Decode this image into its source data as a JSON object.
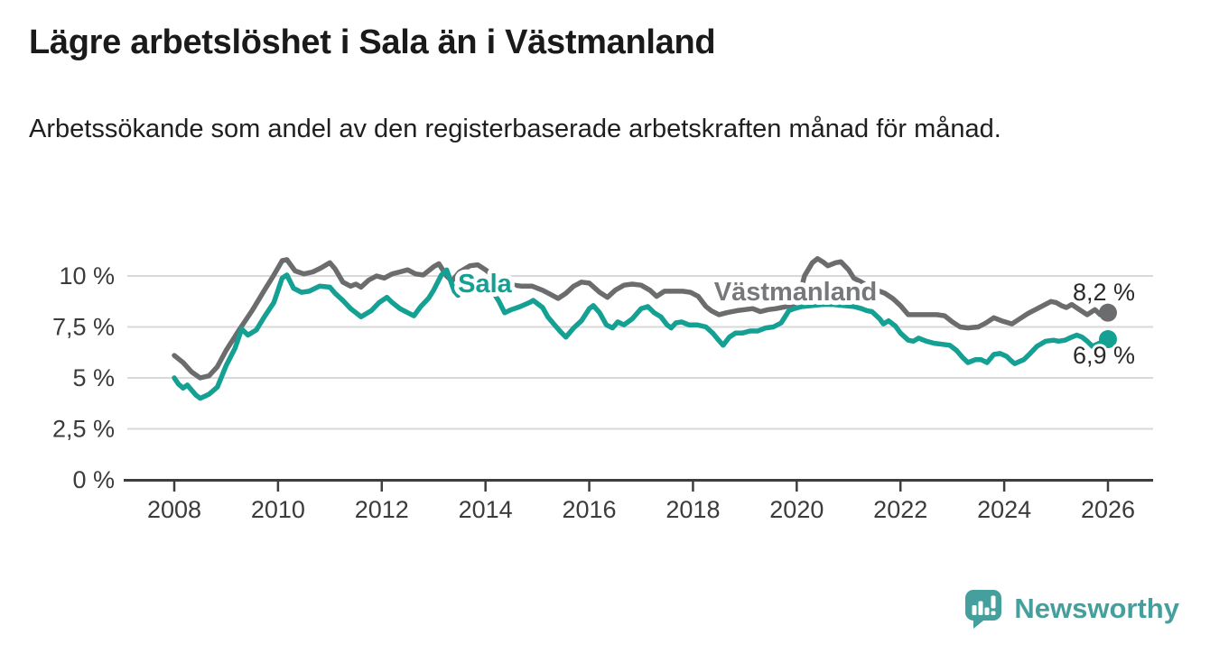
{
  "header": {
    "title": "Lägre arbetslöshet i Sala än i Västmanland",
    "subtitle": "Arbetssökande som andel av den registerbaserade arbetskraften månad för månad."
  },
  "footer": {
    "brand": "Newsworthy",
    "brand_color": "#45a09d"
  },
  "chart_data": {
    "type": "line",
    "title": "Lägre arbetslöshet i Sala än i Västmanland",
    "subtitle": "Arbetssökande som andel av den registerbaserade arbetskraften månad för månad.",
    "unit": "%",
    "grid": true,
    "legend_position": "inline-labels",
    "style": {
      "grid_color": "#d9d9d9",
      "axis_color": "#3d3d3d",
      "tick_label_color": "#3b3b3b",
      "value_label_color": "#2a2a2a",
      "background": "#ffffff"
    },
    "x_axis": {
      "min": 2007.05,
      "max": 2026.85,
      "ticks": [
        {
          "v": 2008,
          "label": "2008"
        },
        {
          "v": 2010,
          "label": "2010"
        },
        {
          "v": 2012,
          "label": "2012"
        },
        {
          "v": 2014,
          "label": "2014"
        },
        {
          "v": 2016,
          "label": "2016"
        },
        {
          "v": 2018,
          "label": "2018"
        },
        {
          "v": 2020,
          "label": "2020"
        },
        {
          "v": 2022,
          "label": "2022"
        },
        {
          "v": 2024,
          "label": "2024"
        },
        {
          "v": 2026,
          "label": "2026"
        }
      ]
    },
    "y_axis": {
      "min": 0,
      "max": 11.6,
      "ticks": [
        {
          "v": 10,
          "label": "10 %"
        },
        {
          "v": 7.5,
          "label": "7,5 %"
        },
        {
          "v": 5,
          "label": "5 %"
        },
        {
          "v": 2.5,
          "label": "2,5 %"
        },
        {
          "v": 0,
          "label": "0 %"
        }
      ]
    },
    "series": [
      {
        "name": "Västmanland",
        "inline_label": "Västmanland",
        "color": "#6b6c6e",
        "label_color": "#77787c",
        "end_label": "8,2 %",
        "end_value": 8.2,
        "points": [
          [
            2008.0,
            6.1
          ],
          [
            2008.17,
            5.75
          ],
          [
            2008.33,
            5.3
          ],
          [
            2008.5,
            5.0
          ],
          [
            2008.67,
            5.1
          ],
          [
            2008.83,
            5.55
          ],
          [
            2009.0,
            6.35
          ],
          [
            2009.25,
            7.35
          ],
          [
            2009.5,
            8.3
          ],
          [
            2009.75,
            9.35
          ],
          [
            2009.92,
            10.05
          ],
          [
            2010.08,
            10.75
          ],
          [
            2010.17,
            10.8
          ],
          [
            2010.33,
            10.25
          ],
          [
            2010.5,
            10.1
          ],
          [
            2010.67,
            10.2
          ],
          [
            2010.83,
            10.4
          ],
          [
            2011.0,
            10.65
          ],
          [
            2011.1,
            10.35
          ],
          [
            2011.25,
            9.7
          ],
          [
            2011.4,
            9.5
          ],
          [
            2011.5,
            9.6
          ],
          [
            2011.6,
            9.45
          ],
          [
            2011.75,
            9.8
          ],
          [
            2011.9,
            10.0
          ],
          [
            2012.05,
            9.9
          ],
          [
            2012.2,
            10.1
          ],
          [
            2012.35,
            10.2
          ],
          [
            2012.5,
            10.3
          ],
          [
            2012.65,
            10.1
          ],
          [
            2012.8,
            10.05
          ],
          [
            2013.0,
            10.45
          ],
          [
            2013.1,
            10.6
          ],
          [
            2013.25,
            10.0
          ],
          [
            2013.35,
            9.75
          ],
          [
            2013.5,
            10.2
          ],
          [
            2013.7,
            10.5
          ],
          [
            2013.85,
            10.55
          ],
          [
            2014.0,
            10.3
          ],
          [
            2014.2,
            9.9
          ],
          [
            2014.4,
            9.7
          ],
          [
            2014.55,
            9.55
          ],
          [
            2014.7,
            9.5
          ],
          [
            2014.9,
            9.5
          ],
          [
            2015.1,
            9.3
          ],
          [
            2015.25,
            9.1
          ],
          [
            2015.4,
            8.9
          ],
          [
            2015.55,
            9.15
          ],
          [
            2015.7,
            9.5
          ],
          [
            2015.85,
            9.7
          ],
          [
            2016.0,
            9.65
          ],
          [
            2016.2,
            9.2
          ],
          [
            2016.35,
            8.95
          ],
          [
            2016.5,
            9.3
          ],
          [
            2016.67,
            9.55
          ],
          [
            2016.83,
            9.6
          ],
          [
            2017.0,
            9.55
          ],
          [
            2017.17,
            9.3
          ],
          [
            2017.3,
            9.0
          ],
          [
            2017.45,
            9.25
          ],
          [
            2017.6,
            9.25
          ],
          [
            2017.8,
            9.25
          ],
          [
            2017.95,
            9.2
          ],
          [
            2018.1,
            9.0
          ],
          [
            2018.25,
            8.5
          ],
          [
            2018.35,
            8.3
          ],
          [
            2018.5,
            8.1
          ],
          [
            2018.65,
            8.2
          ],
          [
            2018.85,
            8.3
          ],
          [
            2019.0,
            8.35
          ],
          [
            2019.15,
            8.4
          ],
          [
            2019.3,
            8.25
          ],
          [
            2019.45,
            8.35
          ],
          [
            2019.6,
            8.4
          ],
          [
            2019.8,
            8.5
          ],
          [
            2019.95,
            8.6
          ],
          [
            2020.05,
            9.0
          ],
          [
            2020.15,
            10.0
          ],
          [
            2020.3,
            10.65
          ],
          [
            2020.4,
            10.85
          ],
          [
            2020.5,
            10.7
          ],
          [
            2020.6,
            10.5
          ],
          [
            2020.75,
            10.65
          ],
          [
            2020.85,
            10.7
          ],
          [
            2021.0,
            10.3
          ],
          [
            2021.1,
            9.9
          ],
          [
            2021.25,
            9.7
          ],
          [
            2021.4,
            9.45
          ],
          [
            2021.55,
            9.3
          ],
          [
            2021.7,
            9.15
          ],
          [
            2021.85,
            8.9
          ],
          [
            2022.0,
            8.55
          ],
          [
            2022.15,
            8.1
          ],
          [
            2022.3,
            8.1
          ],
          [
            2022.5,
            8.1
          ],
          [
            2022.7,
            8.1
          ],
          [
            2022.85,
            8.05
          ],
          [
            2023.0,
            7.75
          ],
          [
            2023.15,
            7.5
          ],
          [
            2023.3,
            7.45
          ],
          [
            2023.5,
            7.5
          ],
          [
            2023.65,
            7.7
          ],
          [
            2023.8,
            7.95
          ],
          [
            2023.95,
            7.8
          ],
          [
            2024.15,
            7.65
          ],
          [
            2024.3,
            7.9
          ],
          [
            2024.45,
            8.15
          ],
          [
            2024.6,
            8.35
          ],
          [
            2024.75,
            8.55
          ],
          [
            2024.9,
            8.75
          ],
          [
            2025.0,
            8.7
          ],
          [
            2025.1,
            8.55
          ],
          [
            2025.2,
            8.45
          ],
          [
            2025.3,
            8.6
          ],
          [
            2025.45,
            8.35
          ],
          [
            2025.6,
            8.1
          ],
          [
            2025.75,
            8.35
          ],
          [
            2025.85,
            8.1
          ],
          [
            2026.0,
            8.2
          ]
        ]
      },
      {
        "name": "Sala",
        "inline_label": "Sala",
        "color": "#14a092",
        "label_color": "#14a092",
        "end_label": "6,9 %",
        "end_value": 6.9,
        "points": [
          [
            2008.0,
            5.0
          ],
          [
            2008.08,
            4.7
          ],
          [
            2008.17,
            4.5
          ],
          [
            2008.25,
            4.65
          ],
          [
            2008.42,
            4.15
          ],
          [
            2008.5,
            4.0
          ],
          [
            2008.67,
            4.2
          ],
          [
            2008.83,
            4.55
          ],
          [
            2009.0,
            5.6
          ],
          [
            2009.17,
            6.45
          ],
          [
            2009.3,
            7.4
          ],
          [
            2009.42,
            7.1
          ],
          [
            2009.58,
            7.35
          ],
          [
            2009.75,
            8.05
          ],
          [
            2009.92,
            8.7
          ],
          [
            2010.08,
            9.9
          ],
          [
            2010.17,
            10.05
          ],
          [
            2010.3,
            9.4
          ],
          [
            2010.45,
            9.2
          ],
          [
            2010.6,
            9.25
          ],
          [
            2010.8,
            9.5
          ],
          [
            2011.0,
            9.45
          ],
          [
            2011.1,
            9.15
          ],
          [
            2011.25,
            8.8
          ],
          [
            2011.4,
            8.4
          ],
          [
            2011.5,
            8.2
          ],
          [
            2011.6,
            8.0
          ],
          [
            2011.8,
            8.3
          ],
          [
            2011.95,
            8.7
          ],
          [
            2012.1,
            8.95
          ],
          [
            2012.2,
            8.7
          ],
          [
            2012.35,
            8.4
          ],
          [
            2012.5,
            8.2
          ],
          [
            2012.62,
            8.05
          ],
          [
            2012.75,
            8.5
          ],
          [
            2012.9,
            8.9
          ],
          [
            2013.0,
            9.3
          ],
          [
            2013.15,
            10.05
          ],
          [
            2013.25,
            10.3
          ],
          [
            2013.4,
            9.25
          ],
          [
            2013.47,
            9.05
          ],
          [
            2013.6,
            9.9
          ],
          [
            2013.7,
            9.75
          ],
          [
            2013.85,
            9.9
          ],
          [
            2014.0,
            9.7
          ],
          [
            2014.1,
            9.4
          ],
          [
            2014.25,
            8.8
          ],
          [
            2014.37,
            8.2
          ],
          [
            2014.5,
            8.35
          ],
          [
            2014.67,
            8.5
          ],
          [
            2014.85,
            8.7
          ],
          [
            2014.92,
            8.8
          ],
          [
            2015.1,
            8.45
          ],
          [
            2015.2,
            8.0
          ],
          [
            2015.33,
            7.6
          ],
          [
            2015.45,
            7.25
          ],
          [
            2015.55,
            7.0
          ],
          [
            2015.7,
            7.45
          ],
          [
            2015.85,
            7.8
          ],
          [
            2016.0,
            8.4
          ],
          [
            2016.08,
            8.55
          ],
          [
            2016.2,
            8.2
          ],
          [
            2016.33,
            7.6
          ],
          [
            2016.45,
            7.45
          ],
          [
            2016.55,
            7.75
          ],
          [
            2016.67,
            7.6
          ],
          [
            2016.83,
            7.9
          ],
          [
            2017.0,
            8.4
          ],
          [
            2017.13,
            8.5
          ],
          [
            2017.25,
            8.2
          ],
          [
            2017.38,
            8.0
          ],
          [
            2017.5,
            7.6
          ],
          [
            2017.58,
            7.45
          ],
          [
            2017.67,
            7.7
          ],
          [
            2017.78,
            7.75
          ],
          [
            2017.92,
            7.6
          ],
          [
            2018.08,
            7.6
          ],
          [
            2018.25,
            7.5
          ],
          [
            2018.38,
            7.2
          ],
          [
            2018.46,
            6.95
          ],
          [
            2018.58,
            6.6
          ],
          [
            2018.7,
            7.0
          ],
          [
            2018.82,
            7.2
          ],
          [
            2018.95,
            7.2
          ],
          [
            2019.1,
            7.3
          ],
          [
            2019.25,
            7.3
          ],
          [
            2019.4,
            7.45
          ],
          [
            2019.55,
            7.5
          ],
          [
            2019.7,
            7.7
          ],
          [
            2019.85,
            8.3
          ],
          [
            2019.95,
            8.4
          ],
          [
            2020.1,
            8.5
          ],
          [
            2020.3,
            8.55
          ],
          [
            2020.5,
            8.6
          ],
          [
            2020.7,
            8.6
          ],
          [
            2020.9,
            8.55
          ],
          [
            2021.1,
            8.5
          ],
          [
            2021.25,
            8.4
          ],
          [
            2021.35,
            8.3
          ],
          [
            2021.45,
            8.25
          ],
          [
            2021.6,
            7.9
          ],
          [
            2021.67,
            7.65
          ],
          [
            2021.77,
            7.8
          ],
          [
            2021.9,
            7.55
          ],
          [
            2022.0,
            7.2
          ],
          [
            2022.15,
            6.85
          ],
          [
            2022.25,
            6.8
          ],
          [
            2022.35,
            6.95
          ],
          [
            2022.5,
            6.8
          ],
          [
            2022.65,
            6.7
          ],
          [
            2022.8,
            6.65
          ],
          [
            2022.95,
            6.6
          ],
          [
            2023.08,
            6.35
          ],
          [
            2023.2,
            6.0
          ],
          [
            2023.3,
            5.75
          ],
          [
            2023.45,
            5.9
          ],
          [
            2023.55,
            5.9
          ],
          [
            2023.67,
            5.75
          ],
          [
            2023.8,
            6.15
          ],
          [
            2023.92,
            6.2
          ],
          [
            2024.05,
            6.05
          ],
          [
            2024.13,
            5.85
          ],
          [
            2024.2,
            5.7
          ],
          [
            2024.38,
            5.9
          ],
          [
            2024.5,
            6.2
          ],
          [
            2024.63,
            6.55
          ],
          [
            2024.8,
            6.8
          ],
          [
            2024.95,
            6.85
          ],
          [
            2025.05,
            6.8
          ],
          [
            2025.17,
            6.85
          ],
          [
            2025.3,
            7.0
          ],
          [
            2025.4,
            7.1
          ],
          [
            2025.5,
            7.0
          ],
          [
            2025.6,
            6.8
          ],
          [
            2025.7,
            6.55
          ],
          [
            2026.0,
            6.9
          ]
        ]
      }
    ]
  }
}
